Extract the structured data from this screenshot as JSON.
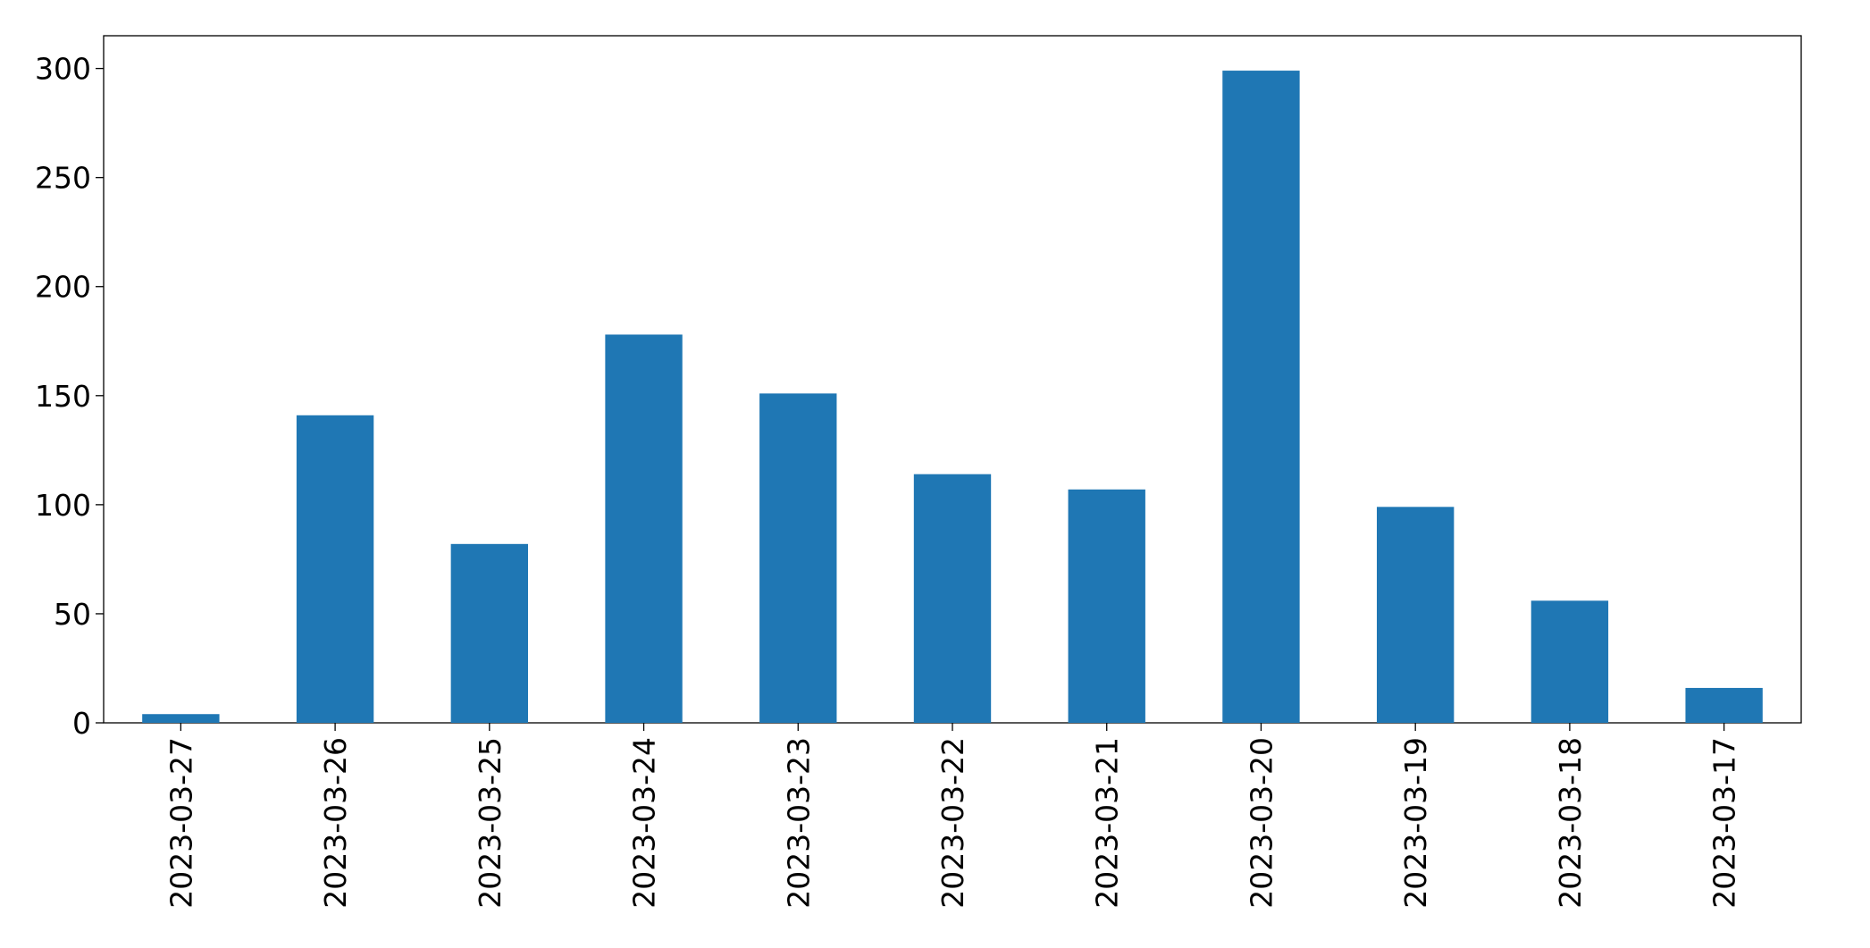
{
  "chart_data": {
    "type": "bar",
    "categories": [
      "2023-03-27",
      "2023-03-26",
      "2023-03-25",
      "2023-03-24",
      "2023-03-23",
      "2023-03-22",
      "2023-03-21",
      "2023-03-20",
      "2023-03-19",
      "2023-03-18",
      "2023-03-17"
    ],
    "values": [
      4,
      141,
      82,
      178,
      151,
      114,
      107,
      299,
      99,
      56,
      16
    ],
    "color": "#1f77b4",
    "ylim": [
      0,
      315
    ],
    "yticks": [
      0,
      50,
      100,
      150,
      200,
      250,
      300
    ],
    "grid": false
  }
}
